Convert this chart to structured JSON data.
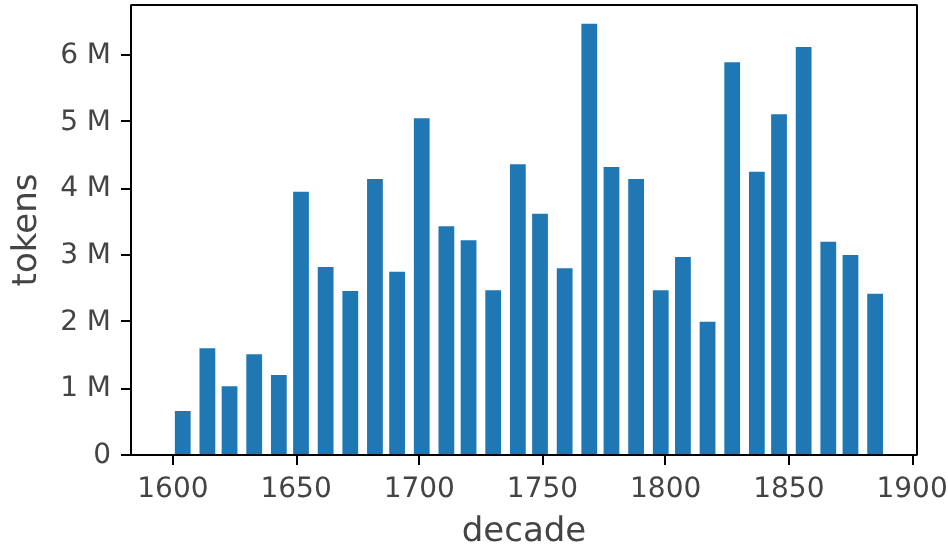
{
  "chart_data": {
    "type": "bar",
    "xlabel": "decade",
    "ylabel": "tokens",
    "color": "#1f77b4",
    "x": [
      1604,
      1614,
      1623,
      1633,
      1643,
      1652,
      1662,
      1672,
      1682,
      1691,
      1701,
      1711,
      1720,
      1730,
      1740,
      1749,
      1759,
      1769,
      1778,
      1788,
      1798,
      1807,
      1817,
      1827,
      1837,
      1846,
      1856,
      1866,
      1875,
      1885
    ],
    "values": [
      0.66,
      1.6,
      1.03,
      1.51,
      1.2,
      3.95,
      2.82,
      2.46,
      4.14,
      2.75,
      5.05,
      3.43,
      3.22,
      2.47,
      4.36,
      3.62,
      2.8,
      6.47,
      4.32,
      4.14,
      2.47,
      2.97,
      2.0,
      5.89,
      4.25,
      5.11,
      6.12,
      3.2,
      3.0,
      2.42
    ],
    "xlim": [
      1583,
      1902
    ],
    "ylim": [
      0,
      6.75
    ],
    "xticks": [
      1600,
      1650,
      1700,
      1750,
      1800,
      1850,
      1900
    ],
    "yticks": [
      {
        "value": 0,
        "label": "0"
      },
      {
        "value": 1,
        "label": "1 M"
      },
      {
        "value": 2,
        "label": "2 M"
      },
      {
        "value": 3,
        "label": "3 M"
      },
      {
        "value": 4,
        "label": "4 M"
      },
      {
        "value": 5,
        "label": "5 M"
      },
      {
        "value": 6,
        "label": "6 M"
      }
    ],
    "grid": false
  }
}
